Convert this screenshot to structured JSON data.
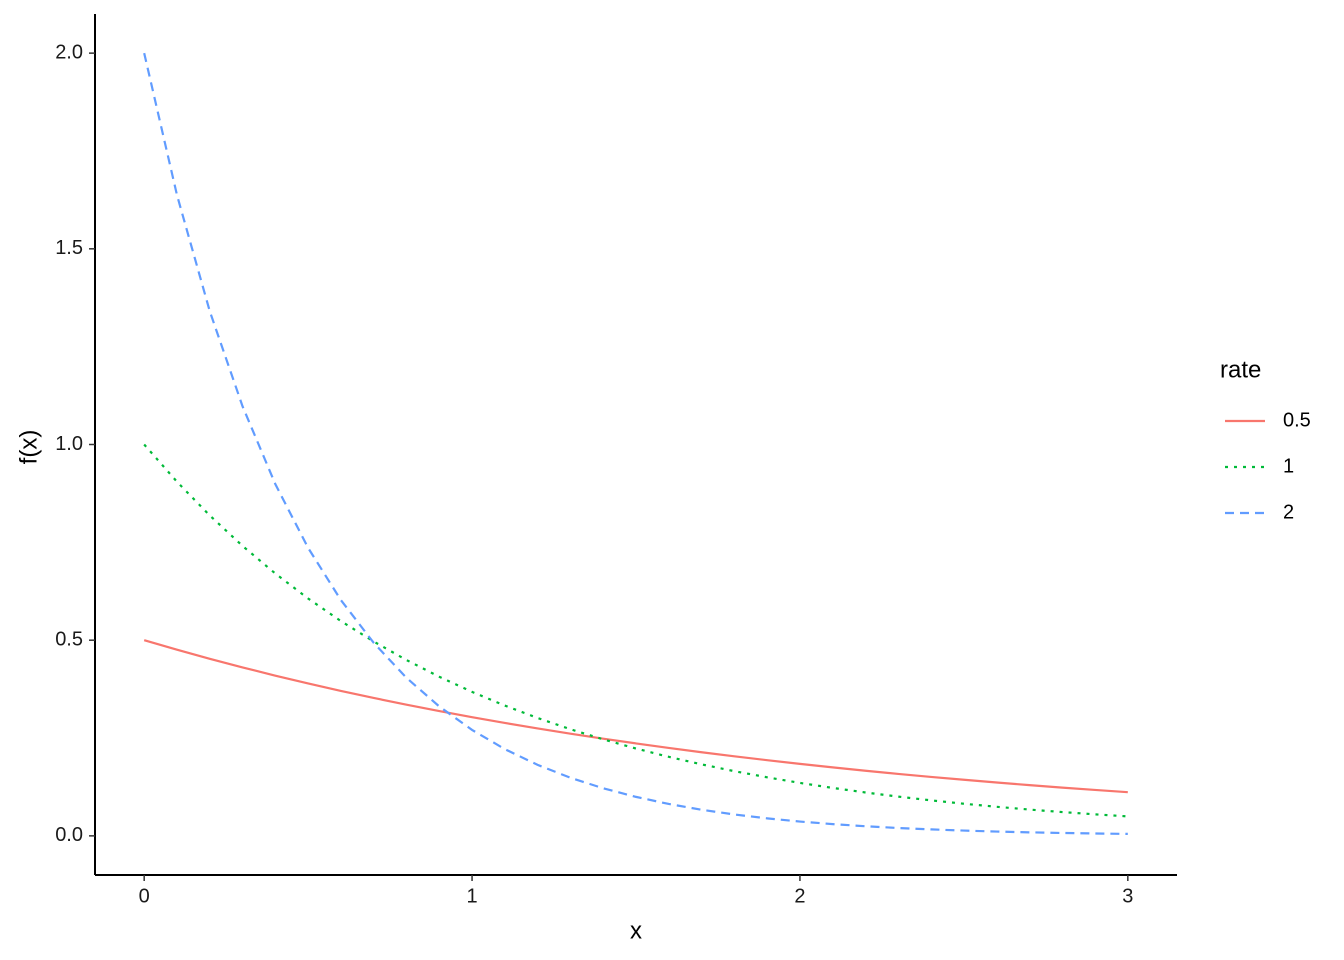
{
  "chart_data": {
    "type": "line",
    "x_label": "x",
    "y_label": "f(x)",
    "x": [
      0,
      0.1,
      0.2,
      0.3,
      0.4,
      0.5,
      0.6,
      0.7,
      0.8,
      0.9,
      1,
      1.1,
      1.2,
      1.3,
      1.4,
      1.5,
      1.6,
      1.7,
      1.8,
      1.9,
      2,
      2.1,
      2.2,
      2.3,
      2.4,
      2.5,
      2.6,
      2.7,
      2.8,
      2.9,
      3
    ],
    "series": [
      {
        "name": "0.5",
        "color": "#F8766D",
        "linetype": "solid",
        "values": [
          0.5,
          0.4756,
          0.4524,
          0.4304,
          0.4094,
          0.3894,
          0.3704,
          0.3523,
          0.3352,
          0.3188,
          0.3033,
          0.2885,
          0.2744,
          0.261,
          0.2483,
          0.2362,
          0.2247,
          0.2137,
          0.2033,
          0.1934,
          0.1839,
          0.175,
          0.1664,
          0.1583,
          0.1506,
          0.1433,
          0.1363,
          0.1296,
          0.1233,
          0.1173,
          0.1116
        ]
      },
      {
        "name": "1",
        "color": "#00BA38",
        "linetype": "dotted",
        "values": [
          1,
          0.9048,
          0.8187,
          0.7408,
          0.6703,
          0.6065,
          0.5488,
          0.4966,
          0.4493,
          0.4066,
          0.3679,
          0.3329,
          0.3012,
          0.2725,
          0.2466,
          0.2231,
          0.2019,
          0.1827,
          0.1653,
          0.1496,
          0.1353,
          0.1225,
          0.1108,
          0.1003,
          0.0907,
          0.0821,
          0.0743,
          0.0672,
          0.0608,
          0.055,
          0.0498
        ]
      },
      {
        "name": "2",
        "color": "#619CFF",
        "linetype": "dashed",
        "values": [
          2,
          1.6375,
          1.3406,
          1.0976,
          0.8987,
          0.7358,
          0.6024,
          0.4932,
          0.4038,
          0.3306,
          0.2707,
          0.2216,
          0.1814,
          0.1485,
          0.1216,
          0.0996,
          0.0815,
          0.0667,
          0.0546,
          0.0447,
          0.0366,
          0.03,
          0.0246,
          0.0201,
          0.0165,
          0.0135,
          0.011,
          0.009,
          0.0074,
          0.0061,
          0.005
        ]
      }
    ],
    "legend_title": "rate",
    "legend_position": "right",
    "xlim": [
      -0.15,
      3.15
    ],
    "xticks": [
      0,
      1,
      2,
      3
    ],
    "ylim": [
      -0.1,
      2.1
    ],
    "yticks": [
      {
        "value": 0,
        "label": "0.0"
      },
      0.5,
      {
        "value": 1,
        "label": "1.0"
      },
      1.5,
      {
        "value": 2,
        "label": "2.0"
      }
    ],
    "grid": false
  }
}
